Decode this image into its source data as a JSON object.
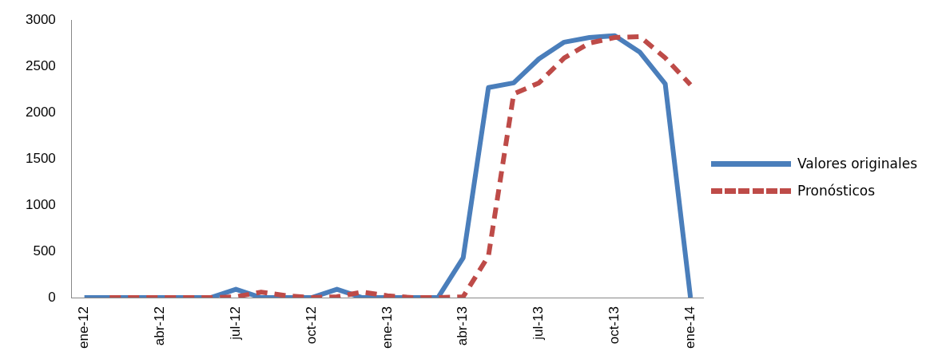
{
  "chart_data": {
    "type": "line",
    "categories": [
      "ene-12",
      null,
      null,
      "abr-12",
      null,
      null,
      "jul-12",
      null,
      null,
      "oct-12",
      null,
      null,
      "ene-13",
      null,
      null,
      "abr-13",
      null,
      null,
      "jul-13",
      null,
      null,
      "oct-13",
      null,
      null,
      "ene-14"
    ],
    "series": [
      {
        "name": "Valores originales",
        "color": "#4a7ebb",
        "line_style": "solid",
        "values": [
          0,
          0,
          0,
          0,
          0,
          0,
          90,
          0,
          0,
          0,
          90,
          0,
          0,
          0,
          0,
          430,
          2270,
          2320,
          2580,
          2760,
          2810,
          2830,
          2650,
          2310,
          0
        ]
      },
      {
        "name": "Pronósticos",
        "color": "#be4b48",
        "line_style": "dashed",
        "values": [
          null,
          0,
          0,
          0,
          0,
          0,
          10,
          60,
          20,
          0,
          10,
          60,
          20,
          0,
          0,
          10,
          450,
          2200,
          2320,
          2590,
          2750,
          2810,
          2820,
          2590,
          2300
        ]
      }
    ],
    "ylim": [
      0,
      3000
    ],
    "yticks": [
      0,
      500,
      1000,
      1500,
      2000,
      2500,
      3000
    ],
    "grid": false,
    "legend": "right",
    "marker": "none"
  }
}
